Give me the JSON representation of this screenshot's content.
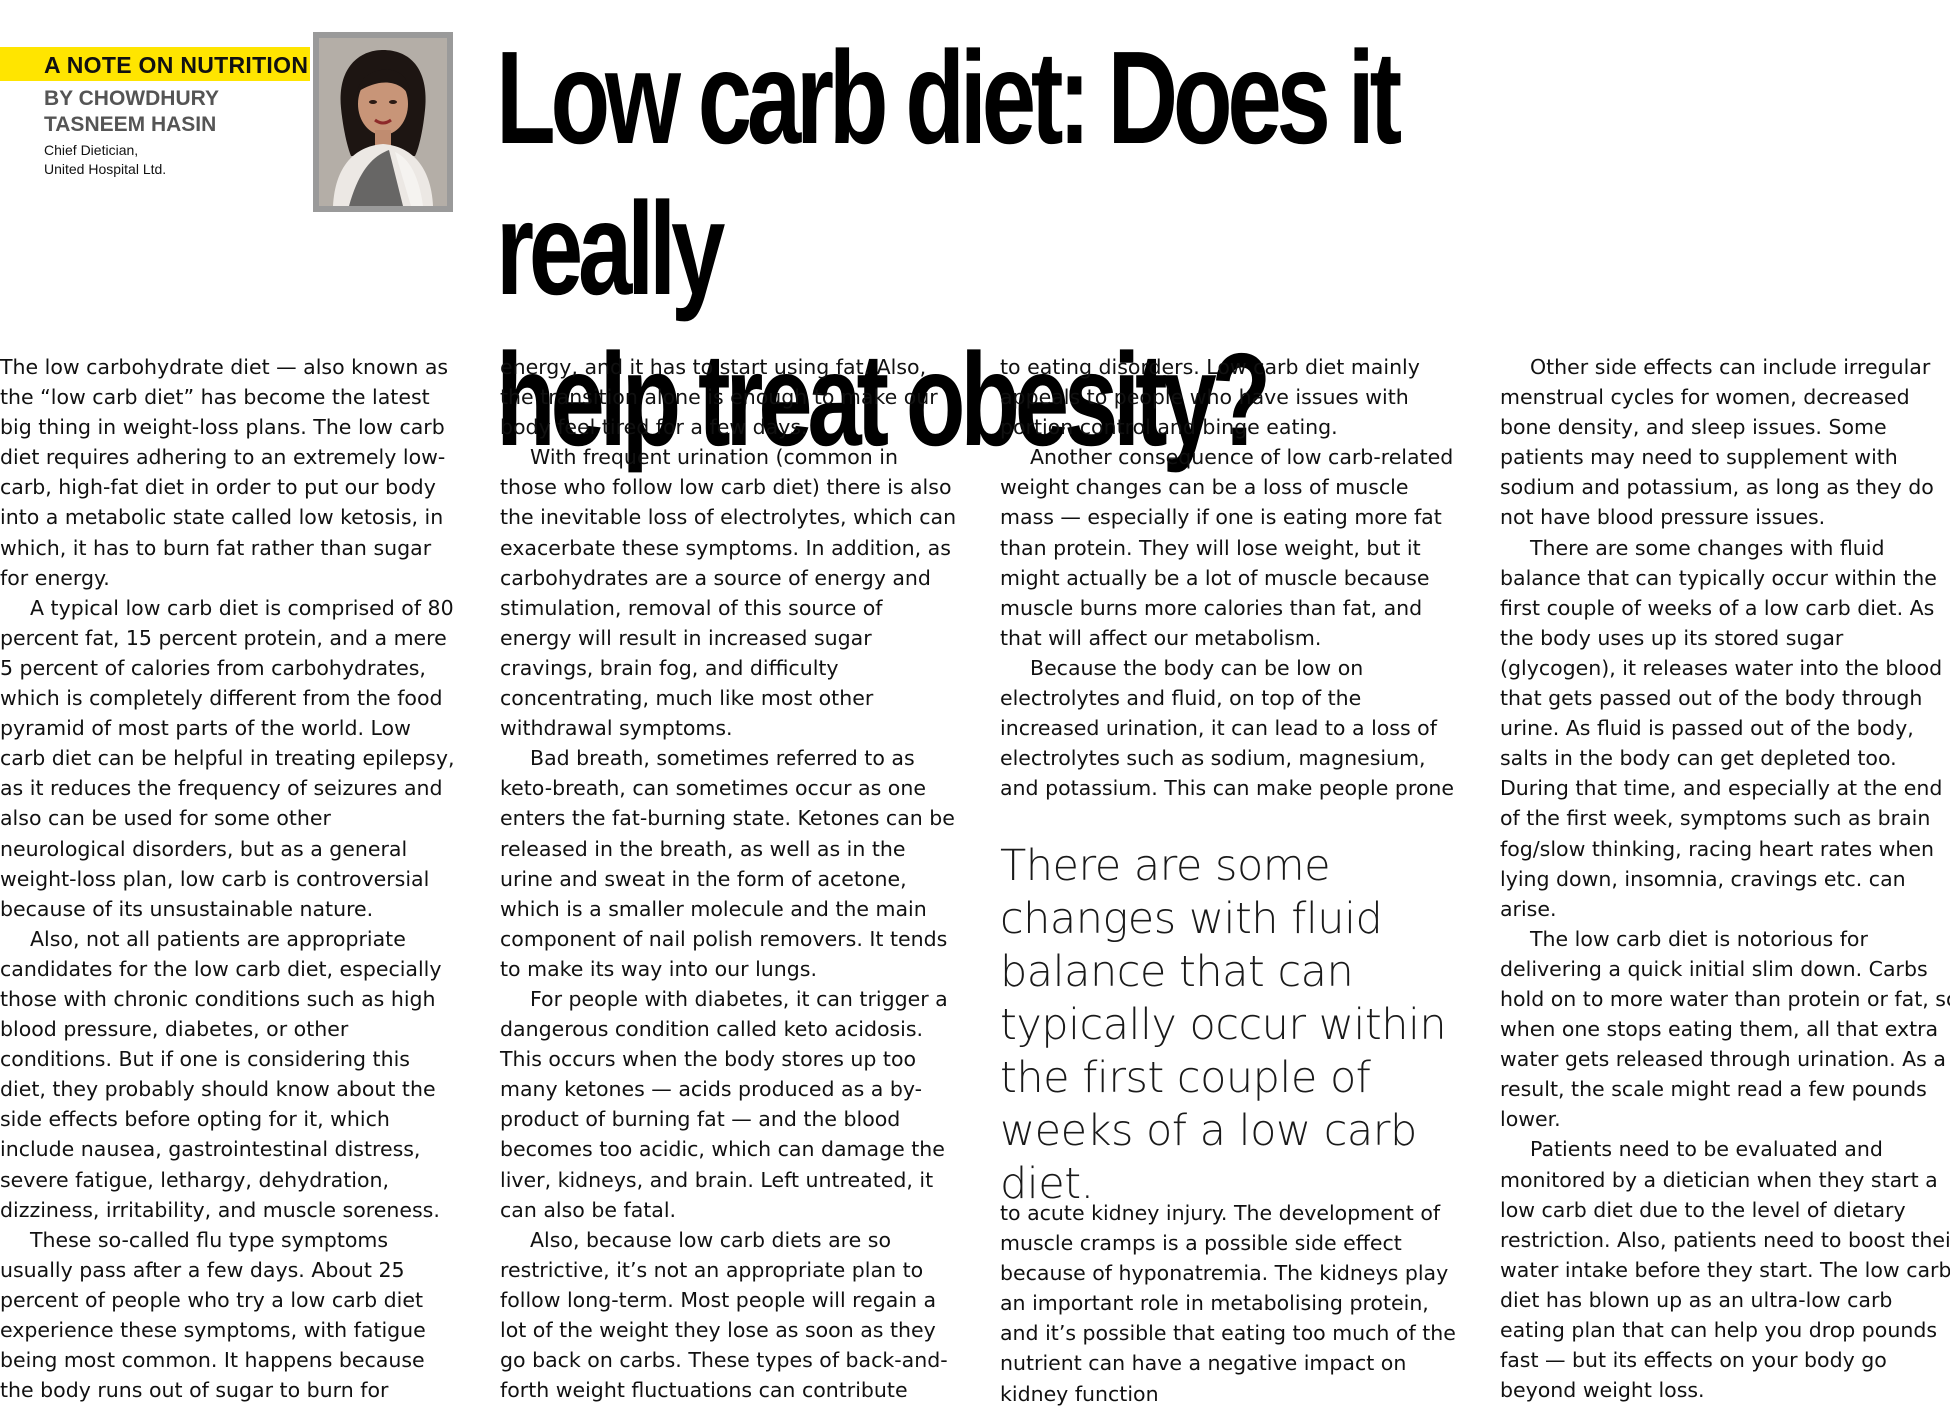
{
  "header": {
    "kicker": "A NOTE ON NUTRITION",
    "byline_line1": "BY CHOWDHURY",
    "byline_line2": "TASNEEM HASIN",
    "role_line1": "Chief Dietician,",
    "role_line2": "United Hospital Ltd.",
    "headline_line1": "Low carb diet: Does it really",
    "headline_line2": "help treat obesity?"
  },
  "colors": {
    "kicker_bg": "#ffe500",
    "photo_frame": "#9a9a9a"
  },
  "icons": {
    "author_photo": "author-portrait"
  },
  "body": {
    "col1": [
      "The low carbohydrate diet — also known as the “low carb diet” has become the latest big thing in weight-loss plans. The low carb diet requires adhering to an extremely low-carb, high-fat diet in order to put our body into a metabolic state called low ketosis, in which, it has to burn fat rather than sugar for energy.",
      "A typical low carb diet is comprised of 80 percent fat, 15 percent protein, and a mere 5 percent of calories from carbohydrates, which is completely different from the food pyramid of most parts of the world. Low carb diet can be helpful in treating epilepsy, as it reduces the frequency of seizures and also can be used for some other neurological disorders, but as a general weight-loss plan, low carb is controversial because of its unsustainable nature.",
      "Also, not all patients are appropriate candidates for the low carb diet, especially those with chronic conditions such as high blood pressure, diabetes, or other conditions. But if one is considering this diet, they probably should know about the side effects before opting for it, which include nausea, gastrointestinal distress, severe fatigue, lethargy, dehydration, dizziness, irritability, and muscle soreness.",
      "These so-called flu type symptoms usually pass after a few days. About 25 percent of people who try a low carb diet experience these symptoms, with fatigue being most common. It happens because the body runs out of sugar to burn for"
    ],
    "col2": [
      "energy, and it has to start using fat. Also, the transition alone is enough to make our body feel tired for a few days.",
      "With frequent urination (common in those who follow low carb diet) there is also the inevitable loss of electrolytes, which can exacerbate these symptoms. In addition, as carbohydrates are a source of energy and stimulation, removal of this source of energy will result in increased sugar cravings, brain fog, and difficulty concentrating, much like most other withdrawal symptoms.",
      "Bad breath, sometimes referred to as keto-breath, can sometimes occur as one enters the fat-burning state. Ketones can be released in the breath, as well as in the urine and sweat in the form of acetone, which is a smaller molecule and the main component of nail polish removers. It tends to make its way into our lungs.",
      "For people with diabetes, it can trigger a dangerous condition called keto acidosis. This occurs when the body stores up too many ketones — acids produced as a by-product of burning fat — and the blood becomes too acidic, which can damage the liver, kidneys, and brain. Left untreated, it can also be fatal.",
      "Also, because low carb diets are so restrictive, it’s not an appropriate plan to follow long-term. Most people will regain a lot of the weight they lose as soon as they go back on carbs. These types of back-and-forth weight fluctuations can contribute"
    ],
    "col3": [
      "to eating disorders. Low carb diet mainly appeals to people who have issues with portion control and binge eating.",
      "Another consequence of low carb-related weight changes can be a loss of muscle mass — especially if one is eating more fat than protein. They will lose weight, but it might actually be a lot of muscle because muscle burns more calories than fat, and that will affect our metabolism.",
      "Because the body can be low on electrolytes and fluid, on top of the increased urination, it can lead to a loss of electrolytes such as sodium, magnesium, and potassium. This can make people prone"
    ],
    "pullquote": "There are some changes with fluid balance that can typically occur within the first couple of weeks of a low carb diet.",
    "col3_after": "to acute kidney injury. The development of muscle cramps is a possible side effect because of hyponatremia. The kidneys play an important role in metabolising protein, and it’s possible that eating too much of the nutrient can have a negative impact on kidney function",
    "col4": [
      "Other side effects can include irregular menstrual cycles for women, decreased bone density, and sleep issues. Some patients may need to supplement with sodium and potassium, as long as they do not have blood pressure issues.",
      "There are some changes with fluid balance that can typically occur within the first couple of weeks of a low carb diet. As the body uses up its stored sugar (glycogen), it releases water into the blood that gets passed out of the body through urine. As fluid is passed out of the body, salts in the body can get depleted too. During that time, and especially at the end of the first week, symptoms such as brain fog/slow thinking, racing heart rates when lying down, insomnia, cravings etc. can arise.",
      "The low carb diet is notorious for delivering a quick initial slim down. Carbs hold on to more water than protein or fat, so when one stops eating them, all that extra water gets released through urination. As a result, the scale might read a few pounds lower.",
      "Patients need to be evaluated and monitored by a dietician when they start a low carb diet due to the level of dietary restriction. Also, patients need to boost their water intake before they start. The low carb diet has blown up as an ultra-low carb eating plan that can help you drop pounds fast — but its effects on your body go beyond weight loss."
    ]
  }
}
